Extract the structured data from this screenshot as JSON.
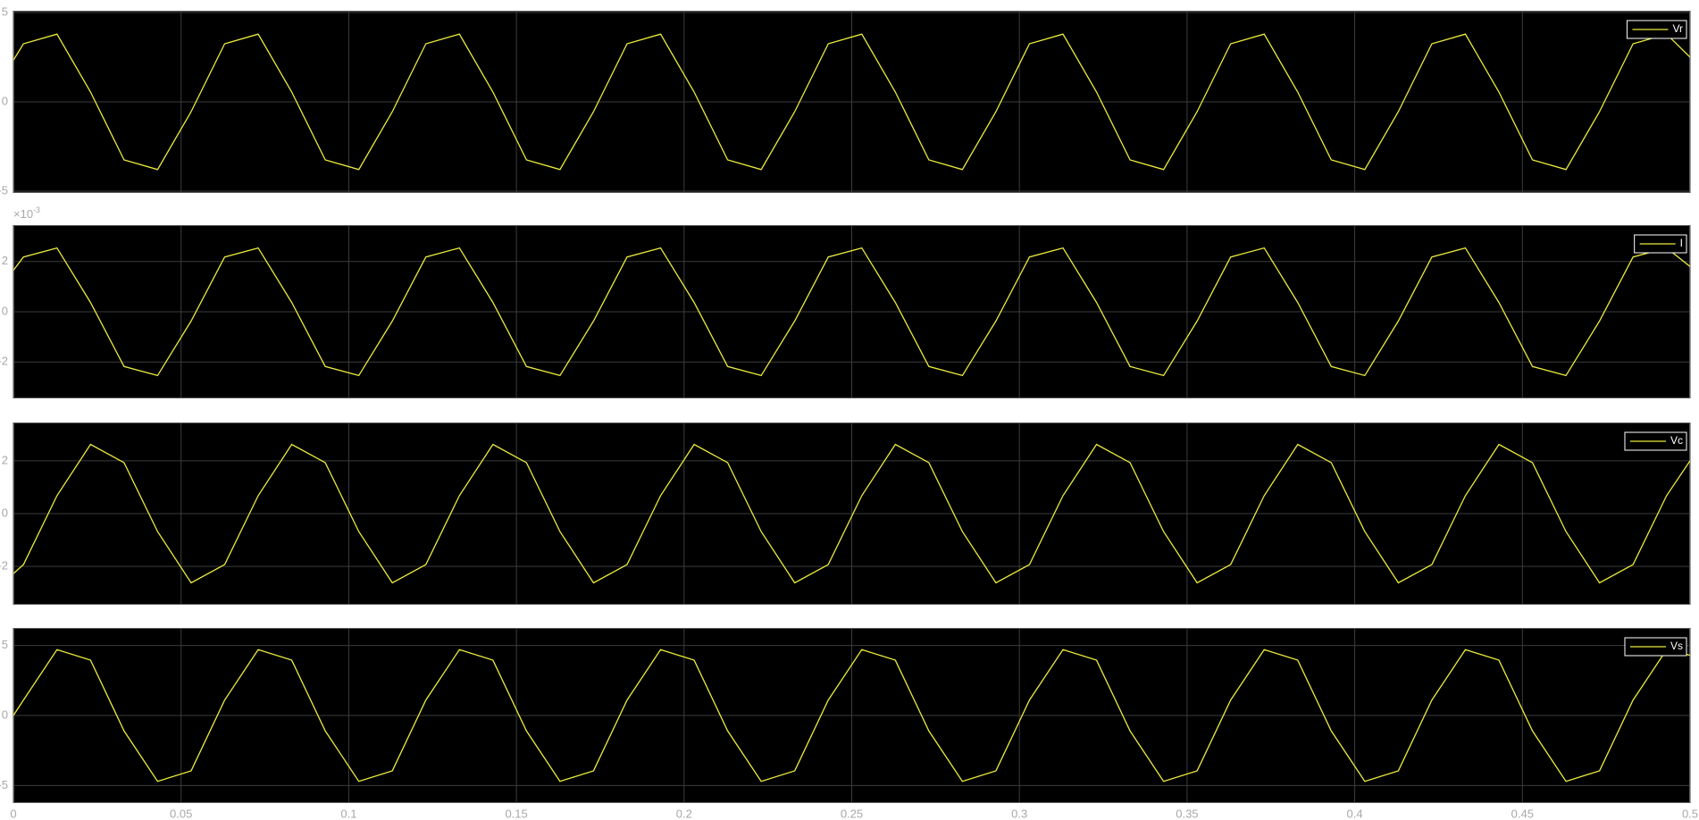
{
  "chart_data": [
    {
      "type": "line",
      "legend": "upper right",
      "grid": true,
      "x": [
        0,
        0.003,
        0.013,
        0.023,
        0.033,
        0.043,
        0.053,
        0.063,
        0.073,
        0.083,
        0.093,
        0.103,
        0.113,
        0.123,
        0.133,
        0.143,
        0.153,
        0.163,
        0.173,
        0.183,
        0.193,
        0.203,
        0.213,
        0.223,
        0.233,
        0.243,
        0.253,
        0.263,
        0.273,
        0.283,
        0.293,
        0.303,
        0.313,
        0.323,
        0.333,
        0.343,
        0.353,
        0.363,
        0.373,
        0.383,
        0.393,
        0.403,
        0.413,
        0.423,
        0.433,
        0.443,
        0.453,
        0.463,
        0.473,
        0.483,
        0.493,
        0.5
      ],
      "xlim": [
        0,
        0.5
      ],
      "xticks": [
        0,
        0.05,
        0.1,
        0.15,
        0.2,
        0.25,
        0.3,
        0.35,
        0.4,
        0.45,
        0.5
      ],
      "ylim": [
        -5.1,
        5.1
      ],
      "yticks": [
        -5,
        0,
        5
      ],
      "series": [
        {
          "name": "Vr",
          "color": "#ebeb3c",
          "values": [
            2.33,
            3.25,
            3.79,
            0.55,
            -3.25,
            -3.79,
            -0.55,
            3.25,
            3.79,
            0.55,
            -3.25,
            -3.79,
            -0.55,
            3.25,
            3.79,
            0.55,
            -3.25,
            -3.79,
            -0.55,
            3.25,
            3.79,
            0.55,
            -3.25,
            -3.79,
            -0.55,
            3.25,
            3.79,
            0.55,
            -3.25,
            -3.79,
            -0.55,
            3.25,
            3.79,
            0.55,
            -3.25,
            -3.79,
            -0.55,
            3.25,
            3.79,
            0.55,
            -3.25,
            -3.79,
            -0.55,
            3.25,
            3.79,
            0.55,
            -3.25,
            -3.79,
            -0.55,
            3.25,
            3.79,
            2.5
          ]
        }
      ]
    },
    {
      "type": "line",
      "legend": "upper right",
      "grid": true,
      "x": [
        0,
        0.003,
        0.013,
        0.023,
        0.033,
        0.043,
        0.053,
        0.063,
        0.073,
        0.083,
        0.093,
        0.103,
        0.113,
        0.123,
        0.133,
        0.143,
        0.153,
        0.163,
        0.173,
        0.183,
        0.193,
        0.203,
        0.213,
        0.223,
        0.233,
        0.243,
        0.253,
        0.263,
        0.273,
        0.283,
        0.293,
        0.303,
        0.313,
        0.323,
        0.333,
        0.343,
        0.353,
        0.363,
        0.373,
        0.383,
        0.393,
        0.403,
        0.413,
        0.423,
        0.433,
        0.443,
        0.453,
        0.463,
        0.473,
        0.483,
        0.493,
        0.5
      ],
      "xlim": [
        0,
        0.5
      ],
      "xticks": [
        0,
        0.05,
        0.1,
        0.15,
        0.2,
        0.25,
        0.3,
        0.35,
        0.4,
        0.45,
        0.5
      ],
      "ylim": [
        -3.45,
        3.45
      ],
      "yticks": [
        -2,
        0,
        2
      ],
      "yexponent": {
        "base": "×10",
        "power": "-3"
      },
      "series": [
        {
          "name": "I",
          "color": "#ebeb3c",
          "values": [
            1.65,
            2.18,
            2.54,
            0.37,
            -2.18,
            -2.54,
            -0.37,
            2.18,
            2.54,
            0.37,
            -2.18,
            -2.54,
            -0.37,
            2.18,
            2.54,
            0.37,
            -2.18,
            -2.54,
            -0.37,
            2.18,
            2.54,
            0.37,
            -2.18,
            -2.54,
            -0.37,
            2.18,
            2.54,
            0.37,
            -2.18,
            -2.54,
            -0.37,
            2.18,
            2.54,
            0.37,
            -2.18,
            -2.54,
            -0.37,
            2.18,
            2.54,
            0.37,
            -2.18,
            -2.54,
            -0.37,
            2.18,
            2.54,
            0.37,
            -2.18,
            -2.54,
            -0.37,
            2.18,
            2.54,
            1.8
          ]
        }
      ]
    },
    {
      "type": "line",
      "legend": "upper right",
      "grid": true,
      "x": [
        0,
        0.003,
        0.013,
        0.023,
        0.033,
        0.043,
        0.053,
        0.063,
        0.073,
        0.083,
        0.093,
        0.103,
        0.113,
        0.123,
        0.133,
        0.143,
        0.153,
        0.163,
        0.173,
        0.183,
        0.193,
        0.203,
        0.213,
        0.223,
        0.233,
        0.243,
        0.253,
        0.263,
        0.273,
        0.283,
        0.293,
        0.303,
        0.313,
        0.323,
        0.333,
        0.343,
        0.353,
        0.363,
        0.373,
        0.383,
        0.393,
        0.403,
        0.413,
        0.423,
        0.433,
        0.443,
        0.453,
        0.463,
        0.473,
        0.483,
        0.493,
        0.5
      ],
      "xlim": [
        0,
        0.5
      ],
      "xticks": [
        0,
        0.05,
        0.1,
        0.15,
        0.2,
        0.25,
        0.3,
        0.35,
        0.4,
        0.45,
        0.5
      ],
      "ylim": [
        -3.45,
        3.45
      ],
      "yticks": [
        -2,
        0,
        2
      ],
      "series": [
        {
          "name": "Vc",
          "color": "#ebeb3c",
          "values": [
            -2.27,
            -1.93,
            0.68,
            2.62,
            1.93,
            -0.68,
            -2.62,
            -1.93,
            0.68,
            2.62,
            1.93,
            -0.68,
            -2.62,
            -1.93,
            0.68,
            2.62,
            1.93,
            -0.68,
            -2.62,
            -1.93,
            0.68,
            2.62,
            1.93,
            -0.68,
            -2.62,
            -1.93,
            0.68,
            2.62,
            1.93,
            -0.68,
            -2.62,
            -1.93,
            0.68,
            2.62,
            1.93,
            -0.68,
            -2.62,
            -1.93,
            0.68,
            2.62,
            1.93,
            -0.68,
            -2.62,
            -1.93,
            0.68,
            2.62,
            1.93,
            -0.68,
            -2.62,
            -1.93,
            0.68,
            2.0
          ]
        }
      ]
    },
    {
      "type": "line",
      "legend": "upper right",
      "grid": true,
      "x": [
        0,
        0.003,
        0.013,
        0.023,
        0.033,
        0.043,
        0.053,
        0.063,
        0.073,
        0.083,
        0.093,
        0.103,
        0.113,
        0.123,
        0.133,
        0.143,
        0.153,
        0.163,
        0.173,
        0.183,
        0.193,
        0.203,
        0.213,
        0.223,
        0.233,
        0.243,
        0.253,
        0.263,
        0.273,
        0.283,
        0.293,
        0.303,
        0.313,
        0.323,
        0.333,
        0.343,
        0.353,
        0.363,
        0.373,
        0.383,
        0.393,
        0.403,
        0.413,
        0.423,
        0.433,
        0.443,
        0.453,
        0.463,
        0.473,
        0.483,
        0.493,
        0.5
      ],
      "xlim": [
        0,
        0.5
      ],
      "xticks": [
        0,
        0.05,
        0.1,
        0.15,
        0.2,
        0.25,
        0.3,
        0.35,
        0.4,
        0.45,
        0.5
      ],
      "ylim": [
        -6.25,
        6.25
      ],
      "yticks": [
        -5,
        0,
        5
      ],
      "series": [
        {
          "name": "Vs",
          "color": "#ebeb3c",
          "values": [
            0,
            1.1,
            4.7,
            3.95,
            -1.1,
            -4.7,
            -3.95,
            1.1,
            4.7,
            3.95,
            -1.1,
            -4.7,
            -3.95,
            1.1,
            4.7,
            3.95,
            -1.1,
            -4.7,
            -3.95,
            1.1,
            4.7,
            3.95,
            -1.1,
            -4.7,
            -3.95,
            1.1,
            4.7,
            3.95,
            -1.1,
            -4.7,
            -3.95,
            1.1,
            4.7,
            3.95,
            -1.1,
            -4.7,
            -3.95,
            1.1,
            4.7,
            3.95,
            -1.1,
            -4.7,
            -3.95,
            1.1,
            4.7,
            3.95,
            -1.1,
            -4.7,
            -3.95,
            1.1,
            4.7,
            4.3
          ]
        }
      ]
    }
  ]
}
